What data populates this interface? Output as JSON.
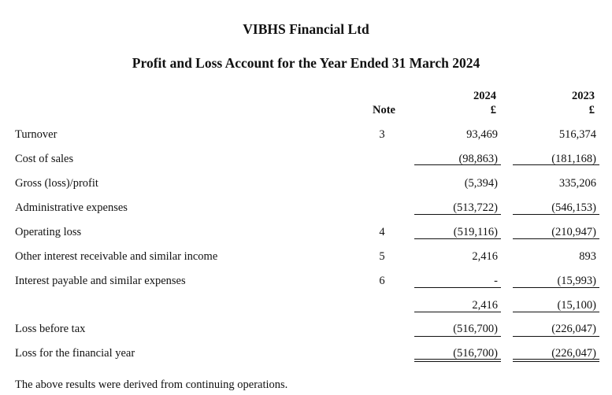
{
  "company": "VIBHS Financial Ltd",
  "statement_title": "Profit and Loss Account for the Year Ended 31 March 2024",
  "columns": {
    "note": "Note",
    "current_year": "2024",
    "prior_year": "2023",
    "currency": "£"
  },
  "rows": [
    {
      "label": "Turnover",
      "note": "3",
      "current": "93,469",
      "prior": "516,374"
    },
    {
      "label": "Cost of sales",
      "note": "",
      "current": "(98,863)",
      "prior": "(181,168)"
    },
    {
      "label": "Gross (loss)/profit",
      "note": "",
      "current": "(5,394)",
      "prior": "335,206"
    },
    {
      "label": "Administrative expenses",
      "note": "",
      "current": "(513,722)",
      "prior": "(546,153)"
    },
    {
      "label": "Operating loss",
      "note": "4",
      "current": "(519,116)",
      "prior": "(210,947)"
    },
    {
      "label": "Other interest receivable and similar income",
      "note": "5",
      "current": "2,416",
      "prior": "893"
    },
    {
      "label": "Interest payable and similar expenses",
      "note": "6",
      "current": "-",
      "prior": "(15,993)"
    },
    {
      "label": "",
      "note": "",
      "current": "2,416",
      "prior": "(15,100)"
    },
    {
      "label": "Loss before tax",
      "note": "",
      "current": "(516,700)",
      "prior": "(226,047)"
    },
    {
      "label": "Loss for the financial year",
      "note": "",
      "current": "(516,700)",
      "prior": "(226,047)"
    }
  ],
  "footnote": "The above results were derived from continuing operations."
}
